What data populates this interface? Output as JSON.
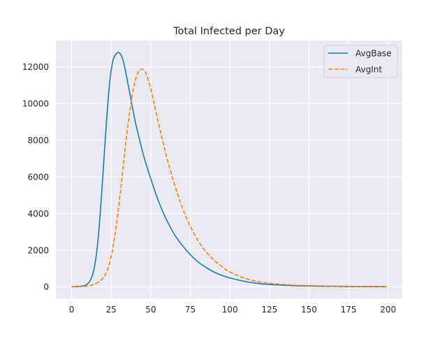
{
  "chart_data": {
    "type": "line",
    "title": "Total Infected per Day",
    "xlabel": "",
    "ylabel": "",
    "xlim": [
      -9.95,
      208.95
    ],
    "ylim": [
      -640,
      13440
    ],
    "xticks": [
      0,
      25,
      50,
      75,
      100,
      125,
      150,
      175,
      200
    ],
    "yticks": [
      0,
      2000,
      4000,
      6000,
      8000,
      10000,
      12000
    ],
    "grid": true,
    "legend": {
      "position": "top-right"
    },
    "series": [
      {
        "name": "AvgBase",
        "color": "#1f77b4",
        "dash": "solid",
        "x": [
          0,
          5,
          8,
          10,
          12,
          14,
          16,
          18,
          20,
          22,
          24,
          26,
          28,
          30,
          32,
          34,
          36,
          38,
          40,
          43,
          46,
          50,
          55,
          60,
          65,
          70,
          75,
          80,
          85,
          90,
          95,
          100,
          110,
          120,
          130,
          140,
          150,
          160,
          175,
          190,
          199
        ],
        "y": [
          0,
          20,
          60,
          150,
          380,
          900,
          2000,
          3900,
          6400,
          9000,
          11100,
          12300,
          12700,
          12770,
          12500,
          11800,
          10900,
          10000,
          9100,
          8000,
          7000,
          5900,
          4650,
          3650,
          2850,
          2250,
          1750,
          1350,
          1050,
          800,
          620,
          480,
          280,
          160,
          100,
          60,
          40,
          25,
          12,
          5,
          3
        ]
      },
      {
        "name": "AvgInt",
        "color": "#ff7f0e",
        "dash": "dashed",
        "x": [
          0,
          5,
          10,
          14,
          18,
          20,
          22,
          24,
          26,
          28,
          30,
          32,
          34,
          36,
          38,
          40,
          42,
          44,
          46,
          48,
          50,
          55,
          60,
          65,
          70,
          75,
          80,
          85,
          90,
          95,
          100,
          110,
          120,
          130,
          140,
          150,
          160,
          175,
          190,
          199
        ],
        "y": [
          0,
          10,
          40,
          130,
          320,
          500,
          800,
          1300,
          2100,
          3200,
          4600,
          6100,
          7700,
          9100,
          10300,
          11200,
          11700,
          11870,
          11800,
          11400,
          10800,
          8900,
          7100,
          5600,
          4300,
          3300,
          2500,
          1900,
          1450,
          1100,
          800,
          450,
          250,
          150,
          90,
          60,
          40,
          20,
          10,
          6
        ]
      }
    ]
  }
}
